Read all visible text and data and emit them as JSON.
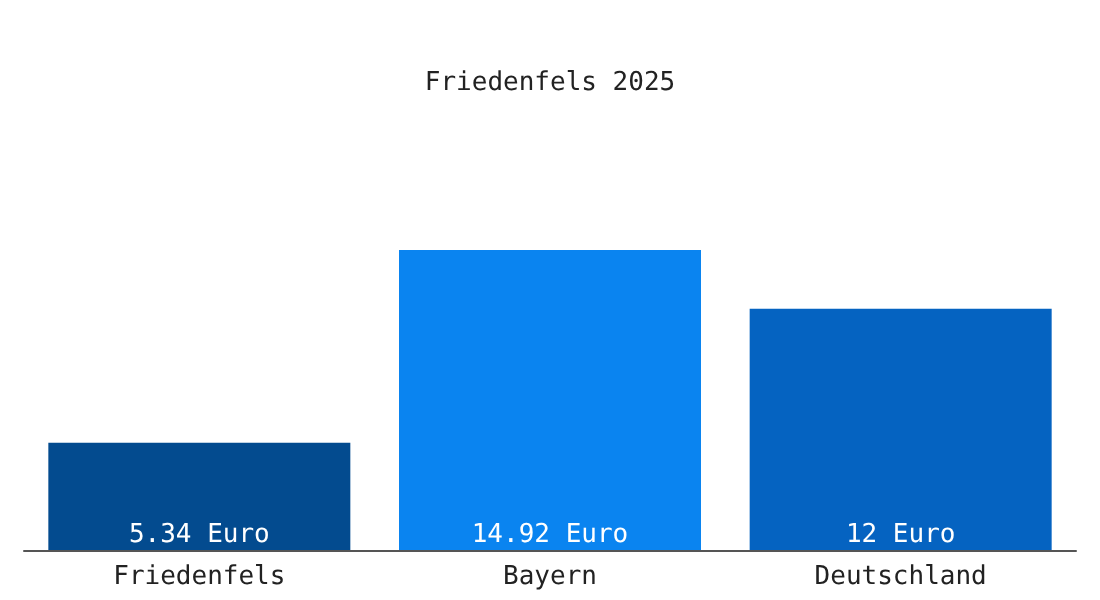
{
  "chart_data": {
    "type": "bar",
    "title": "Friedenfels 2025",
    "categories": [
      "Friedenfels",
      "Bayern",
      "Deutschland"
    ],
    "values": [
      5.34,
      14.92,
      12
    ],
    "colors": [
      "#034b8f",
      "#0a84f0",
      "#0563c1"
    ],
    "value_labels": [
      "5.34 Euro",
      "14.92 Euro",
      "12 Euro"
    ]
  }
}
